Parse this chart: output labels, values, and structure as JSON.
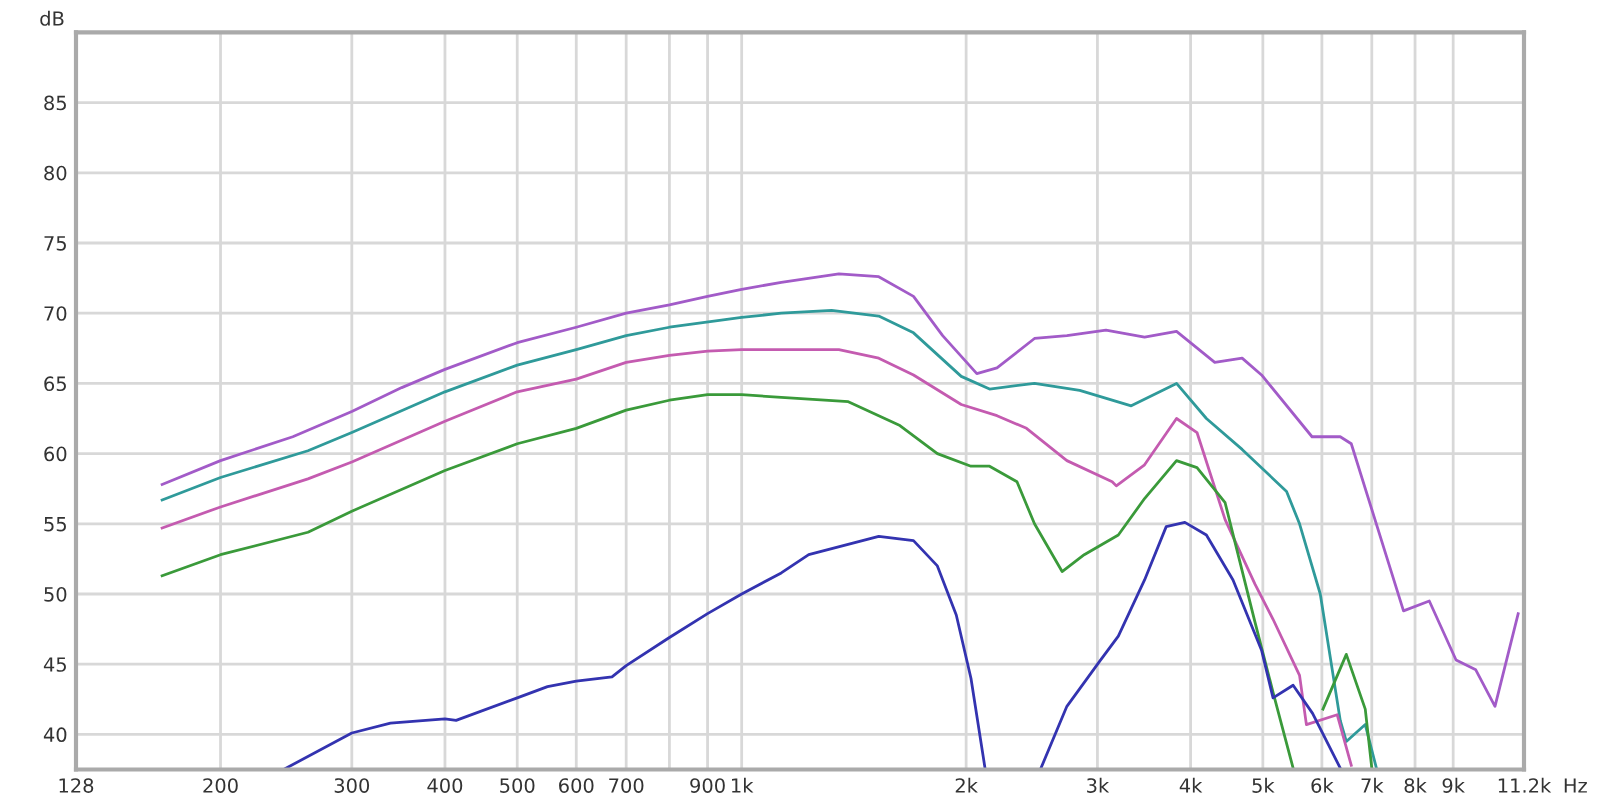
{
  "chart_data": {
    "type": "line",
    "xlabel": "Hz",
    "ylabel": "dB",
    "log": "x",
    "grid": true,
    "marker": "none",
    "line_style": "solid",
    "xlim": [
      128,
      11200
    ],
    "ylim": [
      37.5,
      90
    ],
    "xticks": [
      128,
      {
        "value": 200,
        "label": "200"
      },
      {
        "value": 300,
        "label": "300"
      },
      {
        "value": 400,
        "label": "400"
      },
      {
        "value": 500,
        "label": "500"
      },
      {
        "value": 600,
        "label": "600"
      },
      {
        "value": 700,
        "label": "700"
      },
      {
        "value": 800,
        "label": null
      },
      {
        "value": 900,
        "label": "900"
      },
      {
        "value": 1000,
        "label": "1k"
      },
      {
        "value": 2000,
        "label": "2k"
      },
      {
        "value": 3000,
        "label": "3k"
      },
      {
        "value": 4000,
        "label": "4k"
      },
      {
        "value": 5000,
        "label": "5k"
      },
      {
        "value": 6000,
        "label": "6k"
      },
      {
        "value": 7000,
        "label": "7k"
      },
      {
        "value": 8000,
        "label": "8k"
      },
      {
        "value": 9000,
        "label": "9k"
      },
      {
        "value": 11200,
        "label": "11.2k"
      }
    ],
    "yticks": [
      40,
      45,
      50,
      55,
      60,
      65,
      70,
      75,
      80,
      85
    ],
    "series": [
      {
        "color": "#a25bc8",
        "x": [
          167,
          200,
          250,
          300,
          350,
          400,
          500,
          600,
          700,
          800,
          900,
          1000,
          1130,
          1350,
          1527,
          1700,
          1860,
          2067,
          2200,
          2470,
          2730,
          3080,
          3470,
          3830,
          4310,
          4690,
          4980,
          5820,
          6350,
          6570,
          7720,
          8360,
          9080,
          9650,
          10240,
          11000
        ],
        "values": [
          57.8,
          59.5,
          61.2,
          63,
          64.7,
          66,
          67.9,
          69,
          70,
          70.6,
          71.2,
          71.7,
          72.2,
          72.8,
          72.6,
          71.2,
          68.4,
          65.7,
          66.1,
          68.2,
          68.4,
          68.8,
          68.3,
          68.7,
          66.5,
          66.8,
          65.6,
          61.2,
          61.2,
          60.7,
          48.8,
          49.5,
          45.3,
          44.6,
          42,
          48.6
        ]
      },
      {
        "color": "#2f9a9a",
        "x": [
          167,
          200,
          262,
          300,
          400,
          500,
          600,
          700,
          800,
          1000,
          1130,
          1320,
          1527,
          1700,
          1970,
          2150,
          2470,
          2840,
          3330,
          3830,
          4200,
          4690,
          5380,
          5600,
          5970,
          6350,
          6470,
          6860,
          7100
        ],
        "values": [
          56.7,
          58.3,
          60.2,
          61.5,
          64.4,
          66.3,
          67.4,
          68.4,
          69,
          69.7,
          70,
          70.2,
          69.8,
          68.6,
          65.5,
          64.6,
          65,
          64.5,
          63.4,
          65,
          62.5,
          60.3,
          57.3,
          55,
          50,
          41,
          39.5,
          40.7,
          37.6
        ]
      },
      {
        "color": "#c45bb0",
        "x": [
          167,
          200,
          262,
          300,
          400,
          500,
          600,
          700,
          800,
          900,
          1000,
          1130,
          1350,
          1527,
          1700,
          1970,
          2200,
          2410,
          2730,
          3140,
          3180,
          3470,
          3830,
          4080,
          4450,
          4880,
          5160,
          5600,
          5720,
          6290,
          6570
        ],
        "values": [
          54.7,
          56.2,
          58.2,
          59.4,
          62.3,
          64.4,
          65.3,
          66.5,
          67,
          67.3,
          67.4,
          67.4,
          67.4,
          66.8,
          65.6,
          63.5,
          62.7,
          61.8,
          59.5,
          58,
          57.7,
          59.2,
          62.5,
          61.5,
          55.3,
          50.7,
          48.2,
          44.2,
          40.7,
          41.4,
          37.8
        ]
      },
      {
        "color": "#3a9a3a",
        "x": [
          167,
          200,
          262,
          300,
          400,
          500,
          600,
          700,
          800,
          900,
          1000,
          1130,
          1390,
          1630,
          1830,
          2030,
          2150,
          2340,
          2470,
          2690,
          2880,
          3200,
          3470,
          3830,
          4080,
          4450,
          4880,
          5160,
          5490,
          5750,
          6020,
          6470,
          6860,
          7000
        ],
        "values": [
          51.3,
          52.8,
          54.4,
          55.9,
          58.8,
          60.7,
          61.8,
          63.1,
          63.8,
          64.2,
          64.2,
          64,
          63.7,
          62,
          60,
          59.1,
          59.1,
          58,
          55,
          51.6,
          52.8,
          54.2,
          56.8,
          59.5,
          59,
          56.5,
          48,
          43,
          37.6,
          null,
          41.8,
          45.7,
          41.8,
          37.6
        ]
      },
      {
        "color": "#3333b0",
        "x": [
          243,
          300,
          338,
          400,
          414,
          500,
          549,
          600,
          670,
          700,
          800,
          900,
          1000,
          1130,
          1230,
          1527,
          1700,
          1830,
          1940,
          2030,
          2120,
          2300,
          2520,
          2730,
          3020,
          3200,
          3470,
          3710,
          3930,
          4200,
          4560,
          4980,
          5160,
          5490,
          5830,
          6350
        ],
        "values": [
          37.5,
          40.1,
          40.8,
          41.1,
          41,
          42.6,
          43.4,
          43.8,
          44.1,
          44.9,
          46.9,
          48.6,
          50,
          51.5,
          52.8,
          54.1,
          53.8,
          52,
          48.5,
          44,
          37.6,
          null,
          37.6,
          42,
          45.2,
          47,
          51,
          54.8,
          55.1,
          54.2,
          51,
          46,
          42.6,
          43.5,
          41.5,
          37.6
        ]
      }
    ]
  }
}
